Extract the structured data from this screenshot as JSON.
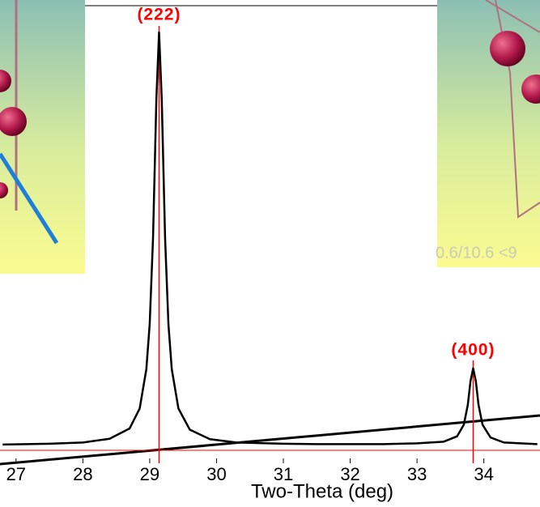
{
  "chart_data": {
    "type": "line",
    "x": [
      26.8,
      27.5,
      28.0,
      28.4,
      28.7,
      28.85,
      28.95,
      29.0,
      29.05,
      29.1,
      29.14,
      29.18,
      29.23,
      29.28,
      29.33,
      29.43,
      29.6,
      29.9,
      30.3,
      31.0,
      31.5,
      32.0,
      32.5,
      33.0,
      33.4,
      33.6,
      33.7,
      33.76,
      33.8,
      33.84,
      33.88,
      33.92,
      33.98,
      34.1,
      34.3,
      34.8
    ],
    "series": [
      {
        "color": "#000000",
        "values": [
          0.6,
          0.8,
          1.1,
          2.0,
          4.5,
          9.3,
          18.8,
          29.7,
          50.5,
          84,
          100,
          84,
          50.5,
          29.7,
          18.8,
          9.3,
          4.2,
          1.9,
          1.1,
          0.8,
          0.7,
          0.7,
          0.7,
          0.9,
          1.3,
          2.6,
          5.4,
          10.2,
          15.9,
          19,
          15.9,
          10.2,
          5.4,
          2.3,
          1.1,
          0.7
        ]
      }
    ],
    "annotations": [
      {
        "label": "(222)",
        "x": 29.14
      },
      {
        "label": "(400)",
        "x": 33.84
      }
    ],
    "annotation_color": "#ff0000",
    "xlabel": "Two-Theta (deg)",
    "xlim": [
      26.76,
      34.84
    ],
    "xticks": [
      27,
      28,
      29,
      30,
      31,
      32,
      33,
      34
    ],
    "ylim": [
      0,
      100
    ],
    "inset_text": "0.6/10.6 <9"
  }
}
